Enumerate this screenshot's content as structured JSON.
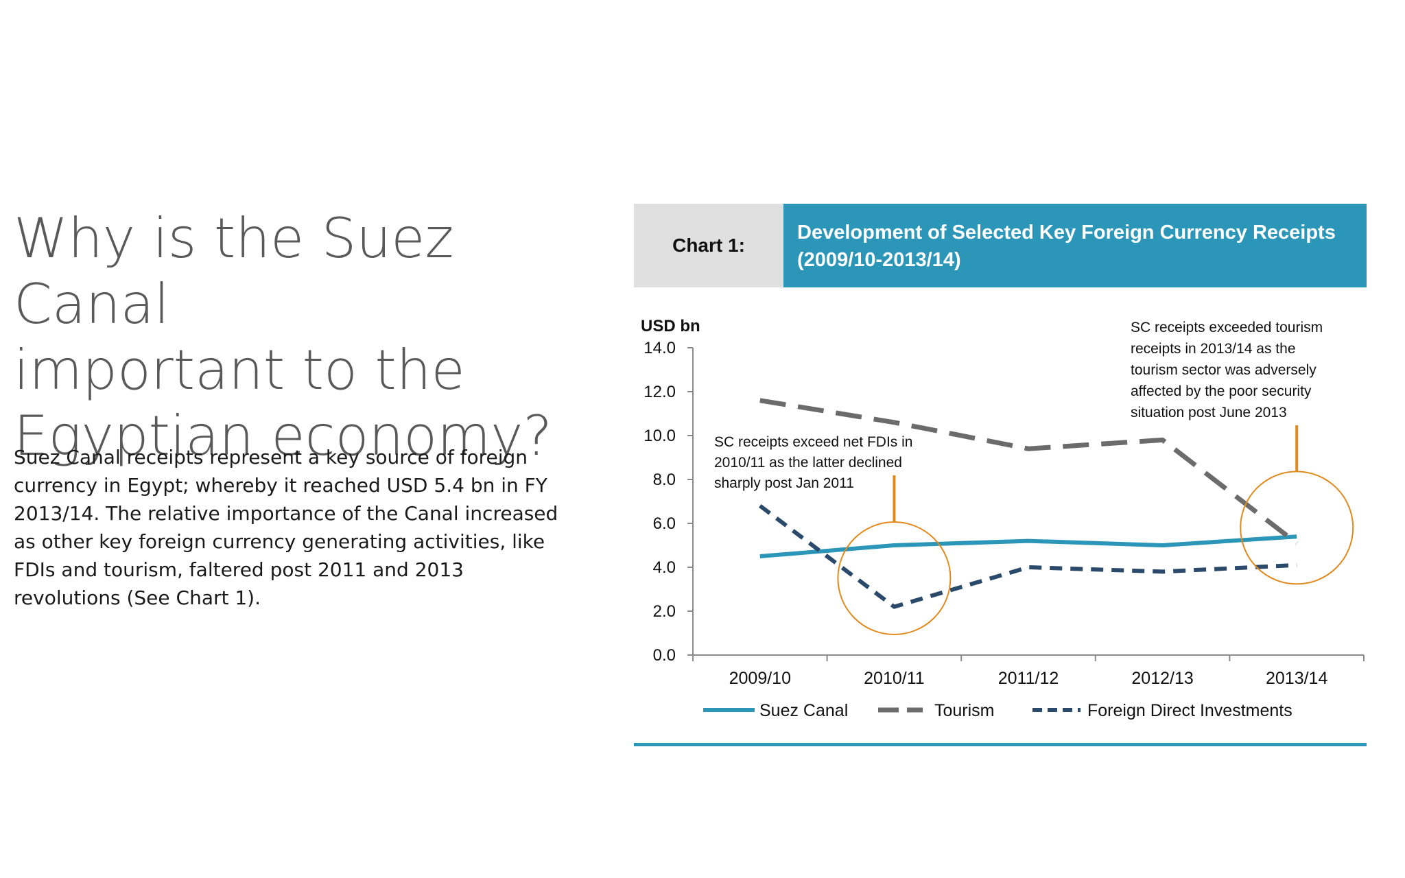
{
  "slide": {
    "title_lines": [
      "Why is the Suez Canal",
      "important to the",
      "Egyptian economy?"
    ],
    "body": "Suez Canal receipts represent a key source of foreign currency in Egypt; whereby it reached USD 5.4 bn in FY 2013/14. The relative importance of the Canal increased as other key foreign currency generating activities, like FDIs and tourism, faltered post 2011 and 2013 revolutions (See Chart 1)."
  },
  "chart_header": {
    "label": "Chart 1:",
    "title_lines": [
      "Development of Selected Key Foreign Currency Receipts",
      "(2009/10-2013/14)"
    ]
  },
  "colors": {
    "accent": "#2c96b9",
    "header_grey": "#e0e0e0",
    "suez": "#2c96b9",
    "tourism": "#6b6b6b",
    "fdi": "#2b4a6b",
    "highlight": "#e08a1e"
  },
  "chart_data": {
    "type": "line",
    "ylabel": "USD bn",
    "xlabel": "",
    "ylim": [
      0,
      14
    ],
    "yticks": [
      0,
      2,
      4,
      6,
      8,
      10,
      12,
      14
    ],
    "ytick_labels": [
      "0.0",
      "2.0",
      "4.0",
      "6.0",
      "8.0",
      "10.0",
      "12.0",
      "14.0"
    ],
    "categories": [
      "2009/10",
      "2010/11",
      "2011/12",
      "2012/13",
      "2013/14"
    ],
    "series": [
      {
        "name": "Suez Canal",
        "values": [
          4.5,
          5.0,
          5.2,
          5.0,
          5.4
        ],
        "color": "#2c96b9",
        "style": "solid"
      },
      {
        "name": "Tourism",
        "values": [
          11.6,
          10.6,
          9.4,
          9.8,
          5.1
        ],
        "color": "#6b6b6b",
        "style": "long-dash"
      },
      {
        "name": "Foreign Direct Investments",
        "values": [
          6.8,
          2.2,
          4.0,
          3.8,
          4.1
        ],
        "color": "#2b4a6b",
        "style": "dash"
      }
    ],
    "legend": "bottom",
    "grid": false,
    "annotations": [
      {
        "text_lines": [
          "SC receipts exceed net FDIs in",
          "2010/11 as the latter declined",
          "sharply post Jan 2011"
        ],
        "category": "2010/11",
        "y": 3.5
      },
      {
        "text_lines": [
          "SC receipts exceeded tourism",
          "receipts in 2013/14 as the",
          "tourism sector was adversely",
          "affected by the poor security",
          "situation post June 2013"
        ],
        "category": "2013/14",
        "y": 5.8
      }
    ]
  }
}
